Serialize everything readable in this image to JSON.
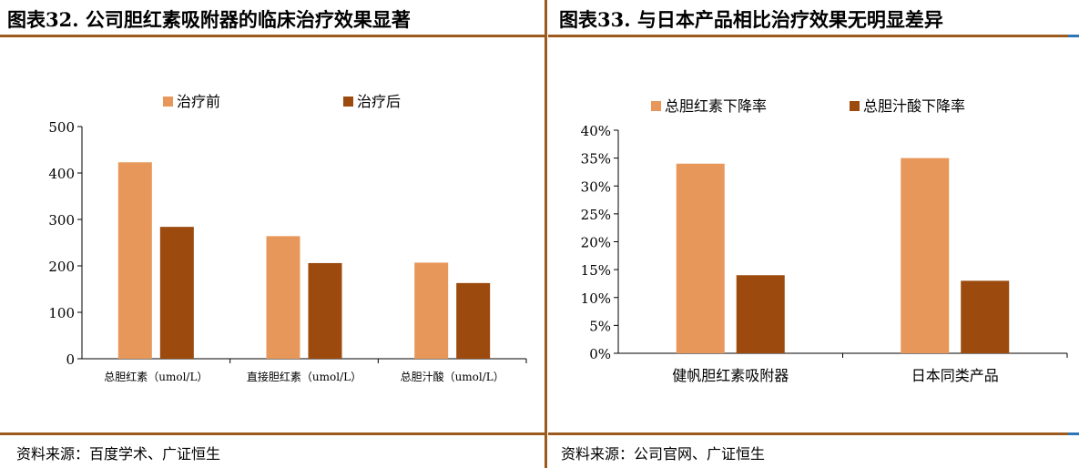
{
  "colors": {
    "before": "#e8975a",
    "after": "#9c4a0e",
    "rule": "#9c5a1e",
    "blue": "#2e75b6"
  },
  "left": {
    "title": "图表32.  公司胆红素吸附器的临床治疗效果显著",
    "source": "资料来源：百度学术、广证恒生"
  },
  "right": {
    "title": "图表33.  与日本产品相比治疗效果无明显差异",
    "source": "资料来源：公司官网、广证恒生"
  },
  "chart_data": [
    {
      "type": "bar",
      "categories": [
        "总胆红素（umol/L）",
        "直接胆红素（umol/L）",
        "总胆汁酸（umol/L）"
      ],
      "series": [
        {
          "name": "治疗前",
          "values": [
            423,
            264,
            207
          ]
        },
        {
          "name": "治疗后",
          "values": [
            284,
            206,
            163
          ]
        }
      ],
      "ylim": [
        0,
        500
      ],
      "yticks": [
        "0",
        "100",
        "200",
        "300",
        "400",
        "500"
      ],
      "ytick_values": [
        0,
        100,
        200,
        300,
        400,
        500
      ],
      "legend": "top",
      "grid": false
    },
    {
      "type": "bar",
      "categories": [
        "健帆胆红素吸附器",
        "日本同类产品"
      ],
      "series": [
        {
          "name": "总胆红素下降率",
          "values": [
            34,
            35
          ]
        },
        {
          "name": "总胆汁酸下降率",
          "values": [
            14,
            13
          ]
        }
      ],
      "ylim": [
        0,
        40
      ],
      "yticks": [
        "0%",
        "5%",
        "10%",
        "15%",
        "20%",
        "25%",
        "30%",
        "35%",
        "40%"
      ],
      "ytick_values": [
        0,
        5,
        10,
        15,
        20,
        25,
        30,
        35,
        40
      ],
      "legend": "top",
      "grid": false
    }
  ]
}
